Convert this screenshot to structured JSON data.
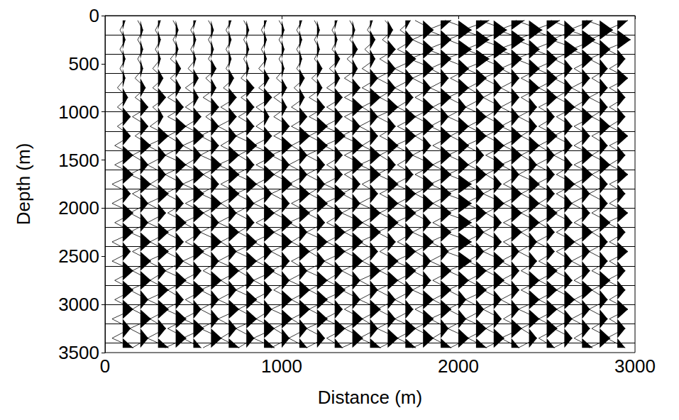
{
  "chart_data": {
    "type": "wiggle",
    "x_label": "Distance (m)",
    "y_label": "Depth (m)",
    "xlim": [
      0,
      3000
    ],
    "xticks": [
      0,
      1000,
      2000,
      3000
    ],
    "ylim": [
      0,
      3500
    ],
    "yticks": [
      0,
      500,
      1000,
      1500,
      2000,
      2500,
      3000,
      3500
    ],
    "grid": false,
    "color": "#000000",
    "horizontal_lines": [
      200,
      400,
      600,
      800,
      1000,
      1200,
      1400,
      1600,
      1800,
      2000,
      2200,
      2400,
      2600,
      2800,
      3000,
      3200,
      3400
    ],
    "x": [
      100,
      200,
      300,
      400,
      500,
      600,
      700,
      800,
      900,
      1000,
      1100,
      1200,
      1300,
      1400,
      1500,
      1600,
      1700,
      1800,
      1900,
      2000,
      2100,
      2200,
      2300,
      2400,
      2500,
      2600,
      2700,
      2800,
      2900
    ],
    "depths": [
      50,
      150,
      250,
      350,
      450,
      550,
      650,
      750,
      850,
      950,
      1050,
      1150,
      1250,
      1350,
      1450,
      1550,
      1650,
      1750,
      1850,
      1950,
      2050,
      2150,
      2250,
      2350,
      2450,
      2550,
      2650,
      2750,
      2850,
      2950,
      3050,
      3150,
      3250,
      3350,
      3450
    ],
    "amplitudes": [
      [
        1,
        -1,
        1,
        -1,
        1,
        -1,
        1,
        -2,
        2,
        -2,
        3,
        -2,
        3,
        -3,
        4,
        -3,
        4,
        -4,
        3,
        -4,
        4,
        -3,
        4,
        -4,
        3,
        -4,
        4,
        -3,
        4,
        -3,
        4,
        -4,
        3,
        -4,
        4
      ],
      [
        -1,
        1,
        -1,
        1,
        -1,
        1,
        -2,
        2,
        -2,
        3,
        -3,
        3,
        -2,
        4,
        -3,
        3,
        -4,
        4,
        -3,
        3,
        -4,
        3,
        -4,
        4,
        -3,
        4,
        -3,
        4,
        -4,
        3,
        -3,
        4,
        -4,
        3,
        -3
      ],
      [
        1,
        -1,
        1,
        -1,
        1,
        -2,
        2,
        -2,
        3,
        -2,
        2,
        -3,
        4,
        -4,
        3,
        -4,
        3,
        -3,
        4,
        -4,
        3,
        -4,
        4,
        -3,
        4,
        -4,
        3,
        -3,
        4,
        -4,
        4,
        -3,
        3,
        -4,
        4
      ],
      [
        -1,
        1,
        -1,
        1,
        -2,
        2,
        -2,
        2,
        -3,
        3,
        -3,
        4,
        -3,
        3,
        -4,
        4,
        -4,
        3,
        -4,
        3,
        -3,
        4,
        -4,
        3,
        -4,
        3,
        -4,
        4,
        -3,
        3,
        -4,
        4,
        -3,
        4,
        -4
      ],
      [
        1,
        -1,
        1,
        -1,
        1,
        -2,
        2,
        -3,
        2,
        -3,
        3,
        -3,
        4,
        -4,
        3,
        -3,
        4,
        -4,
        4,
        -3,
        4,
        -4,
        3,
        -3,
        4,
        -4,
        3,
        -4,
        4,
        -3,
        3,
        -4,
        4,
        -4,
        3
      ],
      [
        -1,
        1,
        -1,
        1,
        -1,
        2,
        -2,
        2,
        -3,
        3,
        -2,
        3,
        -4,
        3,
        -4,
        4,
        -3,
        3,
        -4,
        4,
        -3,
        3,
        -4,
        4,
        -4,
        3,
        -3,
        4,
        -4,
        3,
        -4,
        3,
        -4,
        4,
        -3
      ],
      [
        1,
        -1,
        1,
        -1,
        1,
        -1,
        2,
        -2,
        3,
        -3,
        3,
        -4,
        3,
        -3,
        4,
        -4,
        4,
        -3,
        4,
        -3,
        3,
        -4,
        4,
        -3,
        3,
        -4,
        4,
        -3,
        3,
        -4,
        4,
        -4,
        3,
        -3,
        4
      ],
      [
        -1,
        1,
        -1,
        1,
        -1,
        1,
        -2,
        3,
        -2,
        3,
        -3,
        3,
        -4,
        4,
        -3,
        3,
        -4,
        4,
        -4,
        3,
        -4,
        3,
        -3,
        4,
        -4,
        4,
        -3,
        3,
        -4,
        4,
        -3,
        4,
        -4,
        3,
        -3
      ],
      [
        1,
        -1,
        1,
        -1,
        1,
        -2,
        2,
        -2,
        3,
        -3,
        2,
        -3,
        3,
        -4,
        4,
        -3,
        4,
        -3,
        3,
        -4,
        4,
        -3,
        4,
        -4,
        3,
        -3,
        4,
        -4,
        3,
        -4,
        3,
        -3,
        4,
        -4,
        4
      ],
      [
        -1,
        1,
        -1,
        1,
        -1,
        1,
        -2,
        2,
        -3,
        2,
        -3,
        3,
        -3,
        4,
        -4,
        3,
        -3,
        4,
        -4,
        3,
        -3,
        4,
        -3,
        4,
        -4,
        3,
        -4,
        3,
        -3,
        4,
        -4,
        4,
        -3,
        3,
        -4
      ],
      [
        1,
        -1,
        1,
        -1,
        1,
        -1,
        2,
        -2,
        2,
        -3,
        3,
        -3,
        4,
        -3,
        3,
        -4,
        3,
        -4,
        4,
        -3,
        4,
        -4,
        3,
        -3,
        4,
        -3,
        3,
        -4,
        4,
        -3,
        4,
        -3,
        3,
        -4,
        3
      ],
      [
        -1,
        1,
        -1,
        1,
        -1,
        2,
        -2,
        2,
        -3,
        3,
        -3,
        4,
        -3,
        4,
        -4,
        3,
        -4,
        3,
        -3,
        4,
        -4,
        3,
        -4,
        4,
        -3,
        3,
        -4,
        4,
        -3,
        4,
        -3,
        4,
        -4,
        3,
        -4
      ],
      [
        1,
        -1,
        1,
        -1,
        2,
        -2,
        2,
        -3,
        3,
        -3,
        3,
        -4,
        4,
        -4,
        3,
        -3,
        3,
        -4,
        4,
        -4,
        3,
        -3,
        4,
        -3,
        4,
        -4,
        3,
        -3,
        4,
        -4,
        3,
        -4,
        4,
        -3,
        3
      ],
      [
        -1,
        1,
        -1,
        2,
        -2,
        2,
        -3,
        3,
        -3,
        4,
        -3,
        3,
        -4,
        4,
        -3,
        4,
        -3,
        3,
        -4,
        3,
        -4,
        4,
        -3,
        4,
        -3,
        4,
        -4,
        3,
        -4,
        3,
        -3,
        4,
        -3,
        4,
        -4
      ],
      [
        1,
        -1,
        2,
        -2,
        2,
        -3,
        3,
        -3,
        4,
        -3,
        3,
        -4,
        3,
        -3,
        4,
        -4,
        4,
        -3,
        3,
        -4,
        4,
        -3,
        4,
        -4,
        3,
        -3,
        4,
        -4,
        3,
        -4,
        4,
        -3,
        3,
        -4,
        4
      ],
      [
        -1,
        2,
        -2,
        3,
        -3,
        3,
        -4,
        3,
        -3,
        4,
        -4,
        3,
        -3,
        4,
        -3,
        3,
        -4,
        4,
        -3,
        4,
        -3,
        4,
        -4,
        3,
        -3,
        4,
        -3,
        4,
        -4,
        3,
        -4,
        3,
        -4,
        4,
        -3
      ],
      [
        2,
        -2,
        3,
        -3,
        4,
        -4,
        3,
        -4,
        3,
        -3,
        4,
        -3,
        4,
        -4,
        3,
        -3,
        3,
        -4,
        4,
        -3,
        4,
        -4,
        3,
        -3,
        4,
        -4,
        4,
        -3,
        3,
        -4,
        3,
        -4,
        4,
        -3,
        4
      ],
      [
        -3,
        4,
        -4,
        4,
        -5,
        4,
        -4,
        3,
        -3,
        4,
        -3,
        4,
        -3,
        3,
        -4,
        4,
        -3,
        4,
        -3,
        4,
        -4,
        3,
        -4,
        4,
        -3,
        3,
        -4,
        3,
        -4,
        4,
        -3,
        4,
        -3,
        4,
        -4
      ],
      [
        4,
        -5,
        4,
        -5,
        4,
        -4,
        3,
        -4,
        4,
        -3,
        3,
        -4,
        4,
        -3,
        4,
        -3,
        4,
        -4,
        4,
        -3,
        4,
        -3,
        4,
        -4,
        3,
        -4,
        4,
        -3,
        4,
        -3,
        4,
        -4,
        3,
        -3,
        4
      ],
      [
        -5,
        5,
        -4,
        5,
        -5,
        4,
        -3,
        4,
        -4,
        3,
        -4,
        4,
        -3,
        4,
        -4,
        4,
        -4,
        5,
        -5,
        5,
        -5,
        5,
        -5,
        5,
        -5,
        5,
        -4,
        4,
        -4,
        3,
        -4,
        3,
        -4,
        4,
        -3
      ],
      [
        5,
        -5,
        5,
        -4,
        5,
        -4,
        4,
        -3,
        3,
        -4,
        4,
        -3,
        4,
        -4,
        3,
        -3,
        4,
        -4,
        3,
        -4,
        4,
        -4,
        3,
        -4,
        3,
        -3,
        4,
        -3,
        4,
        -4,
        3,
        -4,
        4,
        -3,
        4
      ],
      [
        -5,
        5,
        -5,
        5,
        -4,
        4,
        -4,
        3,
        -4,
        3,
        -3,
        4,
        -3,
        4,
        -3,
        4,
        -3,
        3,
        -4,
        4,
        -3,
        3,
        -4,
        3,
        -4,
        4,
        -3,
        4,
        -4,
        3,
        -4,
        3,
        -3,
        4,
        -3
      ],
      [
        5,
        -5,
        5,
        -5,
        4,
        -4,
        3,
        -4,
        3,
        -4,
        3,
        -4,
        4,
        -3,
        4,
        -4,
        3,
        -3,
        4,
        -3,
        4,
        -3,
        4,
        -3,
        3,
        -4,
        3,
        -4,
        3,
        -4,
        3,
        -3,
        4,
        -4,
        3
      ],
      [
        -5,
        5,
        -5,
        4,
        -5,
        4,
        -3,
        4,
        -3,
        3,
        -4,
        3,
        -3,
        4,
        -3,
        3,
        -4,
        4,
        -3,
        4,
        -3,
        4,
        -3,
        3,
        -4,
        3,
        -3,
        4,
        -3,
        4,
        -4,
        4,
        -3,
        3,
        -4
      ],
      [
        5,
        -5,
        4,
        -5,
        4,
        -4,
        4,
        -3,
        4,
        -3,
        3,
        -3,
        4,
        -3,
        3,
        -4,
        3,
        -4,
        3,
        -3,
        4,
        -3,
        3,
        -4,
        3,
        -3,
        4,
        -3,
        4,
        -3,
        4,
        -3,
        4,
        -3,
        3
      ],
      [
        -5,
        4,
        -5,
        5,
        -4,
        3,
        -4,
        3,
        -3,
        4,
        -3,
        3,
        -4,
        3,
        -4,
        3,
        -3,
        4,
        -3,
        3,
        -4,
        3,
        -3,
        4,
        -3,
        3,
        -4,
        3,
        -3,
        4,
        -3,
        3,
        -4,
        3,
        -4
      ],
      [
        4,
        -5,
        5,
        -4,
        4,
        -3,
        3,
        -4,
        3,
        -3,
        4,
        -3,
        3,
        -3,
        4,
        -3,
        4,
        -3,
        3,
        -4,
        3,
        -3,
        4,
        -3,
        3,
        -4,
        3,
        -3,
        4,
        -3,
        3,
        -4,
        3,
        -3,
        4
      ],
      [
        -5,
        5,
        -4,
        4,
        -4,
        3,
        -3,
        3,
        -4,
        3,
        -3,
        4,
        -3,
        3,
        -3,
        4,
        -3,
        3,
        -4,
        3,
        -3,
        4,
        -3,
        3,
        -4,
        3,
        -3,
        4,
        -3,
        3,
        -4,
        3,
        -3,
        4,
        -4
      ],
      [
        4,
        -4,
        5,
        -4,
        3,
        -3,
        4,
        -3,
        3,
        -3,
        3,
        -3,
        4,
        -3,
        3,
        -3,
        4,
        -3,
        3,
        -3,
        4,
        -4,
        3,
        -3,
        4,
        -3,
        3,
        -4,
        3,
        -3,
        4,
        -3,
        3,
        -4,
        3
      ]
    ]
  }
}
